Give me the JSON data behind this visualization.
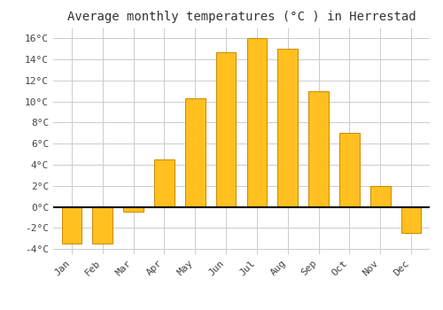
{
  "months": [
    "Jan",
    "Feb",
    "Mar",
    "Apr",
    "May",
    "Jun",
    "Jul",
    "Aug",
    "Sep",
    "Oct",
    "Nov",
    "Dec"
  ],
  "values": [
    -3.5,
    -3.5,
    -0.5,
    4.5,
    10.3,
    14.7,
    16.0,
    15.0,
    11.0,
    7.0,
    2.0,
    -2.5
  ],
  "bar_color": "#FFC020",
  "bar_edge_color": "#CC8800",
  "title": "Average monthly temperatures (°C ) in Herrestad",
  "ylim": [
    -4.5,
    17.0
  ],
  "yticks": [
    -4,
    -2,
    0,
    2,
    4,
    6,
    8,
    10,
    12,
    14,
    16
  ],
  "ytick_labels": [
    "-4°C",
    "-2°C",
    "0°C",
    "2°C",
    "4°C",
    "6°C",
    "8°C",
    "10°C",
    "12°C",
    "14°C",
    "16°C"
  ],
  "background_color": "#ffffff",
  "grid_color": "#cccccc",
  "title_fontsize": 10,
  "tick_fontsize": 8,
  "bar_width": 0.65
}
